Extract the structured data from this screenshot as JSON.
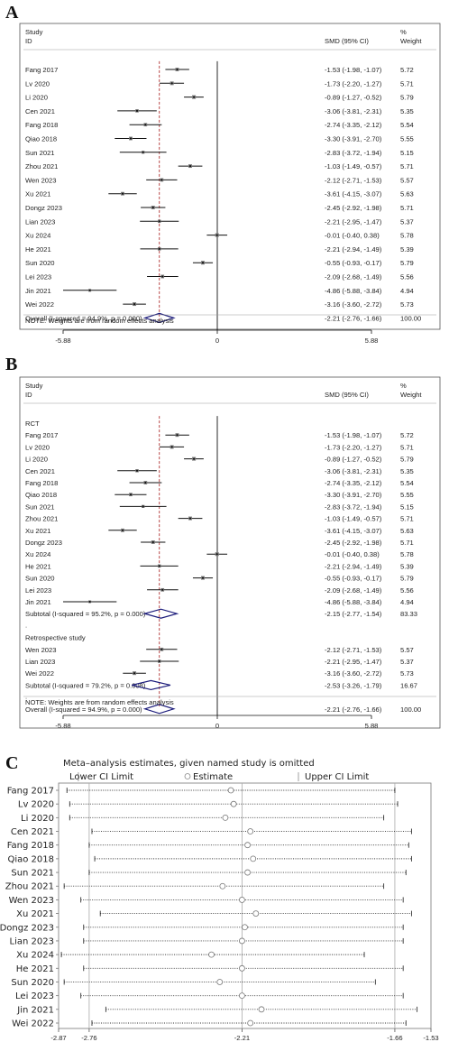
{
  "chart_data": [
    {
      "panel": "A",
      "type": "forest",
      "header": {
        "study": "Study",
        "id": "ID",
        "effect": "SMD (95% CI)",
        "weight_pct": "%",
        "weight": "Weight"
      },
      "studies": [
        {
          "id": "Fang 2017",
          "smd": -1.53,
          "lo": -1.98,
          "hi": -1.07,
          "weight": "5.72",
          "ci_text": "-1.53 (-1.98, -1.07)"
        },
        {
          "id": "Lv 2020",
          "smd": -1.73,
          "lo": -2.2,
          "hi": -1.27,
          "weight": "5.71",
          "ci_text": "-1.73 (-2.20, -1.27)"
        },
        {
          "id": "Li 2020",
          "smd": -0.89,
          "lo": -1.27,
          "hi": -0.52,
          "weight": "5.79",
          "ci_text": "-0.89 (-1.27, -0.52)"
        },
        {
          "id": "Cen 2021",
          "smd": -3.06,
          "lo": -3.81,
          "hi": -2.31,
          "weight": "5.35",
          "ci_text": "-3.06 (-3.81, -2.31)"
        },
        {
          "id": "Fang 2018",
          "smd": -2.74,
          "lo": -3.35,
          "hi": -2.12,
          "weight": "5.54",
          "ci_text": "-2.74 (-3.35, -2.12)"
        },
        {
          "id": "Qiao 2018",
          "smd": -3.3,
          "lo": -3.91,
          "hi": -2.7,
          "weight": "5.55",
          "ci_text": "-3.30 (-3.91, -2.70)"
        },
        {
          "id": "Sun 2021",
          "smd": -2.83,
          "lo": -3.72,
          "hi": -1.94,
          "weight": "5.15",
          "ci_text": "-2.83 (-3.72, -1.94)"
        },
        {
          "id": "Zhou 2021",
          "smd": -1.03,
          "lo": -1.49,
          "hi": -0.57,
          "weight": "5.71",
          "ci_text": "-1.03 (-1.49, -0.57)"
        },
        {
          "id": "Wen 2023",
          "smd": -2.12,
          "lo": -2.71,
          "hi": -1.53,
          "weight": "5.57",
          "ci_text": "-2.12 (-2.71, -1.53)"
        },
        {
          "id": "Xu 2021",
          "smd": -3.61,
          "lo": -4.15,
          "hi": -3.07,
          "weight": "5.63",
          "ci_text": "-3.61 (-4.15, -3.07)"
        },
        {
          "id": "Dongz 2023",
          "smd": -2.45,
          "lo": -2.92,
          "hi": -1.98,
          "weight": "5.71",
          "ci_text": "-2.45 (-2.92, -1.98)"
        },
        {
          "id": "Lian 2023",
          "smd": -2.21,
          "lo": -2.95,
          "hi": -1.47,
          "weight": "5.37",
          "ci_text": "-2.21 (-2.95, -1.47)"
        },
        {
          "id": "Xu 2024",
          "smd": -0.01,
          "lo": -0.4,
          "hi": 0.38,
          "weight": "5.78",
          "ci_text": "-0.01 (-0.40, 0.38)"
        },
        {
          "id": "He 2021",
          "smd": -2.21,
          "lo": -2.94,
          "hi": -1.49,
          "weight": "5.39",
          "ci_text": "-2.21 (-2.94, -1.49)"
        },
        {
          "id": "Sun 2020",
          "smd": -0.55,
          "lo": -0.93,
          "hi": -0.17,
          "weight": "5.79",
          "ci_text": "-0.55 (-0.93, -0.17)"
        },
        {
          "id": "Lei 2023",
          "smd": -2.09,
          "lo": -2.68,
          "hi": -1.49,
          "weight": "5.56",
          "ci_text": "-2.09 (-2.68, -1.49)"
        },
        {
          "id": "Jin 2021",
          "smd": -4.86,
          "lo": -5.88,
          "hi": -3.84,
          "weight": "4.94",
          "ci_text": "-4.86 (-5.88, -3.84)"
        },
        {
          "id": "Wei 2022",
          "smd": -3.16,
          "lo": -3.6,
          "hi": -2.72,
          "weight": "5.73",
          "ci_text": "-3.16 (-3.60, -2.72)"
        }
      ],
      "overall": {
        "label": "Overall  (I-squared = 94.9%, p = 0.000)",
        "smd": -2.21,
        "lo": -2.76,
        "hi": -1.66,
        "weight": "100.00",
        "ci_text": "-2.21 (-2.76, -1.66)"
      },
      "note": "NOTE: Weights are from random effects analysis",
      "x_ticks": [
        -5.88,
        0,
        5.88
      ],
      "x_tick_labels": [
        "-5.88",
        "0",
        "5.88"
      ],
      "xlim": [
        -5.88,
        5.88
      ]
    },
    {
      "panel": "B",
      "type": "forest",
      "header": {
        "study": "Study",
        "id": "ID",
        "effect": "SMD (95% CI)",
        "weight_pct": "%",
        "weight": "Weight"
      },
      "groups": [
        {
          "name": "RCT",
          "studies": [
            {
              "id": "Fang 2017",
              "smd": -1.53,
              "lo": -1.98,
              "hi": -1.07,
              "weight": "5.72",
              "ci_text": "-1.53 (-1.98, -1.07)"
            },
            {
              "id": "Lv 2020",
              "smd": -1.73,
              "lo": -2.2,
              "hi": -1.27,
              "weight": "5.71",
              "ci_text": "-1.73 (-2.20, -1.27)"
            },
            {
              "id": "Li 2020",
              "smd": -0.89,
              "lo": -1.27,
              "hi": -0.52,
              "weight": "5.79",
              "ci_text": "-0.89 (-1.27, -0.52)"
            },
            {
              "id": "Cen 2021",
              "smd": -3.06,
              "lo": -3.81,
              "hi": -2.31,
              "weight": "5.35",
              "ci_text": "-3.06 (-3.81, -2.31)"
            },
            {
              "id": "Fang 2018",
              "smd": -2.74,
              "lo": -3.35,
              "hi": -2.12,
              "weight": "5.54",
              "ci_text": "-2.74 (-3.35, -2.12)"
            },
            {
              "id": "Qiao 2018",
              "smd": -3.3,
              "lo": -3.91,
              "hi": -2.7,
              "weight": "5.55",
              "ci_text": "-3.30 (-3.91, -2.70)"
            },
            {
              "id": "Sun 2021",
              "smd": -2.83,
              "lo": -3.72,
              "hi": -1.94,
              "weight": "5.15",
              "ci_text": "-2.83 (-3.72, -1.94)"
            },
            {
              "id": "Zhou 2021",
              "smd": -1.03,
              "lo": -1.49,
              "hi": -0.57,
              "weight": "5.71",
              "ci_text": "-1.03 (-1.49, -0.57)"
            },
            {
              "id": "Xu 2021",
              "smd": -3.61,
              "lo": -4.15,
              "hi": -3.07,
              "weight": "5.63",
              "ci_text": "-3.61 (-4.15, -3.07)"
            },
            {
              "id": "Dongz 2023",
              "smd": -2.45,
              "lo": -2.92,
              "hi": -1.98,
              "weight": "5.71",
              "ci_text": "-2.45 (-2.92, -1.98)"
            },
            {
              "id": "Xu 2024",
              "smd": -0.01,
              "lo": -0.4,
              "hi": 0.38,
              "weight": "5.78",
              "ci_text": "-0.01 (-0.40, 0.38)"
            },
            {
              "id": "He 2021",
              "smd": -2.21,
              "lo": -2.94,
              "hi": -1.49,
              "weight": "5.39",
              "ci_text": "-2.21 (-2.94, -1.49)"
            },
            {
              "id": "Sun 2020",
              "smd": -0.55,
              "lo": -0.93,
              "hi": -0.17,
              "weight": "5.79",
              "ci_text": "-0.55 (-0.93, -0.17)"
            },
            {
              "id": "Lei 2023",
              "smd": -2.09,
              "lo": -2.68,
              "hi": -1.49,
              "weight": "5.56",
              "ci_text": "-2.09 (-2.68, -1.49)"
            },
            {
              "id": "Jin 2021",
              "smd": -4.86,
              "lo": -5.88,
              "hi": -3.84,
              "weight": "4.94",
              "ci_text": "-4.86 (-5.88, -3.84)"
            }
          ],
          "subtotal": {
            "label": "Subtotal  (I-squared = 95.2%, p = 0.000)",
            "smd": -2.15,
            "lo": -2.77,
            "hi": -1.54,
            "weight": "83.33",
            "ci_text": "-2.15 (-2.77, -1.54)"
          }
        },
        {
          "name": "Retrospective study",
          "studies": [
            {
              "id": "Wen 2023",
              "smd": -2.12,
              "lo": -2.71,
              "hi": -1.53,
              "weight": "5.57",
              "ci_text": "-2.12 (-2.71, -1.53)"
            },
            {
              "id": "Lian 2023",
              "smd": -2.21,
              "lo": -2.95,
              "hi": -1.47,
              "weight": "5.37",
              "ci_text": "-2.21 (-2.95, -1.47)"
            },
            {
              "id": "Wei 2022",
              "smd": -3.16,
              "lo": -3.6,
              "hi": -2.72,
              "weight": "5.73",
              "ci_text": "-3.16 (-3.60, -2.72)"
            }
          ],
          "subtotal": {
            "label": "Subtotal  (I-squared = 79.2%, p = 0.008)",
            "smd": -2.53,
            "lo": -3.26,
            "hi": -1.79,
            "weight": "16.67",
            "ci_text": "-2.53 (-3.26, -1.79)"
          }
        }
      ],
      "overall": {
        "label": "Overall  (I-squared = 94.9%, p = 0.000)",
        "smd": -2.21,
        "lo": -2.76,
        "hi": -1.66,
        "weight": "100.00",
        "ci_text": "-2.21 (-2.76, -1.66)"
      },
      "separator": ".",
      "note": "NOTE: Weights are from random effects analysis",
      "x_ticks": [
        -5.88,
        0,
        5.88
      ],
      "x_tick_labels": [
        "-5.88",
        "0",
        "5.88"
      ],
      "xlim": [
        -5.88,
        5.88
      ]
    },
    {
      "panel": "C",
      "type": "sensitivity",
      "title": "Meta–analysis estimates, given named study is omitted",
      "legend": [
        "Lower CI Limit",
        "Estimate",
        "Upper CI Limit"
      ],
      "studies": [
        {
          "id": "Fang 2017",
          "lo": -2.84,
          "est": -2.25,
          "hi": -1.66
        },
        {
          "id": "Lv 2020",
          "lo": -2.83,
          "est": -2.24,
          "hi": -1.65
        },
        {
          "id": "Li 2020",
          "lo": -2.83,
          "est": -2.27,
          "hi": -1.7
        },
        {
          "id": "Cen 2021",
          "lo": -2.75,
          "est": -2.18,
          "hi": -1.6
        },
        {
          "id": "Fang 2018",
          "lo": -2.76,
          "est": -2.19,
          "hi": -1.61
        },
        {
          "id": "Qiao 2018",
          "lo": -2.74,
          "est": -2.17,
          "hi": -1.6
        },
        {
          "id": "Sun 2021",
          "lo": -2.76,
          "est": -2.19,
          "hi": -1.62
        },
        {
          "id": "Zhou 2021",
          "lo": -2.85,
          "est": -2.28,
          "hi": -1.7
        },
        {
          "id": "Wen 2023",
          "lo": -2.79,
          "est": -2.21,
          "hi": -1.63
        },
        {
          "id": "Xu 2021",
          "lo": -2.72,
          "est": -2.16,
          "hi": -1.6
        },
        {
          "id": "Dongz 2023",
          "lo": -2.78,
          "est": -2.2,
          "hi": -1.63
        },
        {
          "id": "Lian 2023",
          "lo": -2.78,
          "est": -2.21,
          "hi": -1.63
        },
        {
          "id": "Xu 2024",
          "lo": -2.86,
          "est": -2.32,
          "hi": -1.77
        },
        {
          "id": "He 2021",
          "lo": -2.78,
          "est": -2.21,
          "hi": -1.63
        },
        {
          "id": "Sun 2020",
          "lo": -2.85,
          "est": -2.29,
          "hi": -1.73
        },
        {
          "id": "Lei 2023",
          "lo": -2.79,
          "est": -2.21,
          "hi": -1.63
        },
        {
          "id": "Jin 2021",
          "lo": -2.7,
          "est": -2.14,
          "hi": -1.58
        },
        {
          "id": "Wei 2022",
          "lo": -2.75,
          "est": -2.18,
          "hi": -1.62
        }
      ],
      "x_ticks": [
        -2.87,
        -2.76,
        -2.21,
        -1.66,
        -1.53
      ],
      "x_tick_labels": [
        "-2.87",
        "-2.76",
        "-2.21",
        "-1.66",
        "-1.53"
      ],
      "ref_lines": [
        -2.76,
        -2.21,
        -1.66
      ],
      "xlim": [
        -2.87,
        -1.53
      ]
    }
  ],
  "colors": {
    "diamond": "#1a1a7a",
    "dashed": "#b03030",
    "line": "#111111",
    "frame": "#555555",
    "dotted": "#333333"
  }
}
